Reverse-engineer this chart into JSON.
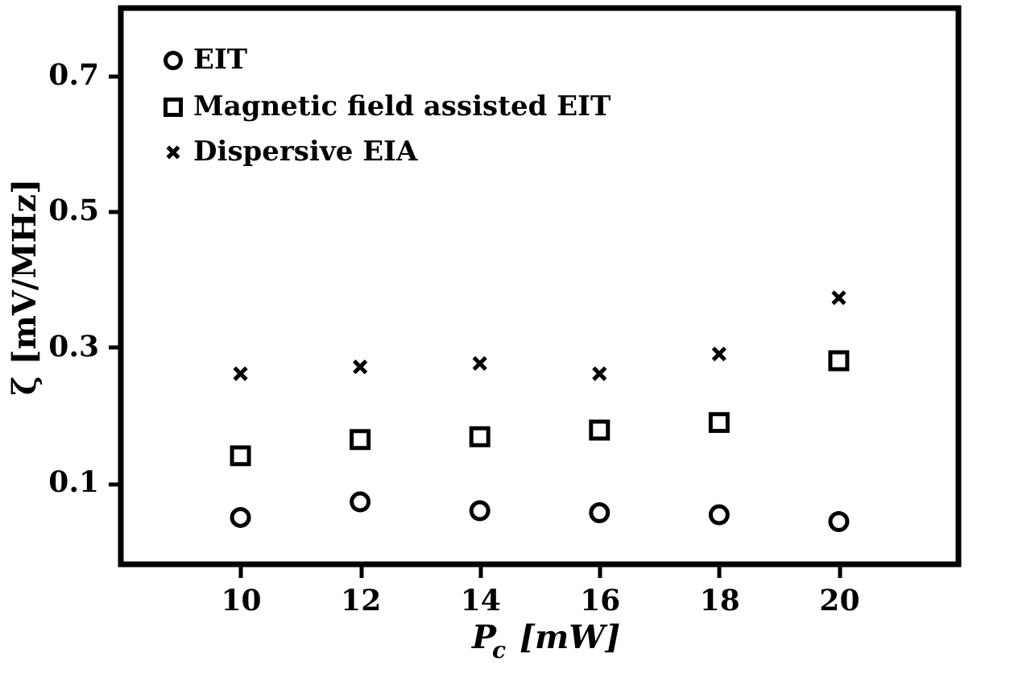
{
  "chart_data": {
    "type": "scatter",
    "xlabel": "P$_{c}$ [mW]",
    "ylabel": "ζ [mV/MHz]",
    "x": [
      10,
      12,
      14,
      16,
      18,
      20
    ],
    "series": [
      {
        "name": "EIT",
        "color": "#000000",
        "marker": "circle",
        "values": [
          0.049,
          0.072,
          0.059,
          0.056,
          0.053,
          0.043
        ]
      },
      {
        "name": "Magnetic field assisted EIT",
        "color": "#000000",
        "marker": "square",
        "values": [
          0.14,
          0.164,
          0.168,
          0.178,
          0.189,
          0.28
        ]
      },
      {
        "name": "Dispersive EIA",
        "color": "#000000",
        "marker": "cross",
        "values": [
          0.261,
          0.271,
          0.276,
          0.261,
          0.29,
          0.373
        ]
      }
    ],
    "xlim": [
      8,
      22
    ],
    "xticks": [
      10,
      12,
      14,
      16,
      18,
      20
    ],
    "ylim": [
      -0.02,
      0.8
    ],
    "yticks": [
      0.1,
      0.3,
      0.5,
      0.7
    ],
    "grid": false,
    "legend": "top left"
  }
}
